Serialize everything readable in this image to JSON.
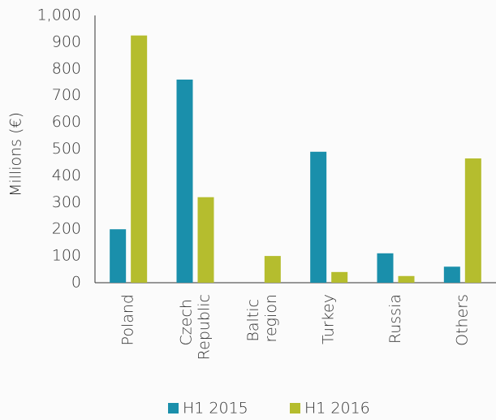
{
  "chart_data": {
    "type": "bar",
    "y_label": "Millions (€)",
    "categories": [
      "Poland",
      "Czech Republic",
      "Baltic region",
      "Turkey",
      "Russia",
      "Others"
    ],
    "series": [
      {
        "name": "H1 2015",
        "color": "#1a8fab",
        "values": [
          200,
          760,
          0,
          490,
          110,
          60
        ]
      },
      {
        "name": "H1 2016",
        "color": "#b5bd2e",
        "values": [
          925,
          320,
          100,
          40,
          25,
          465
        ]
      }
    ],
    "ylim": [
      0,
      1000
    ],
    "yticks": [
      0,
      100,
      200,
      300,
      400,
      500,
      600,
      700,
      800,
      900,
      {
        "value": 1000,
        "label": "1,000"
      }
    ],
    "legend": "bottom"
  }
}
